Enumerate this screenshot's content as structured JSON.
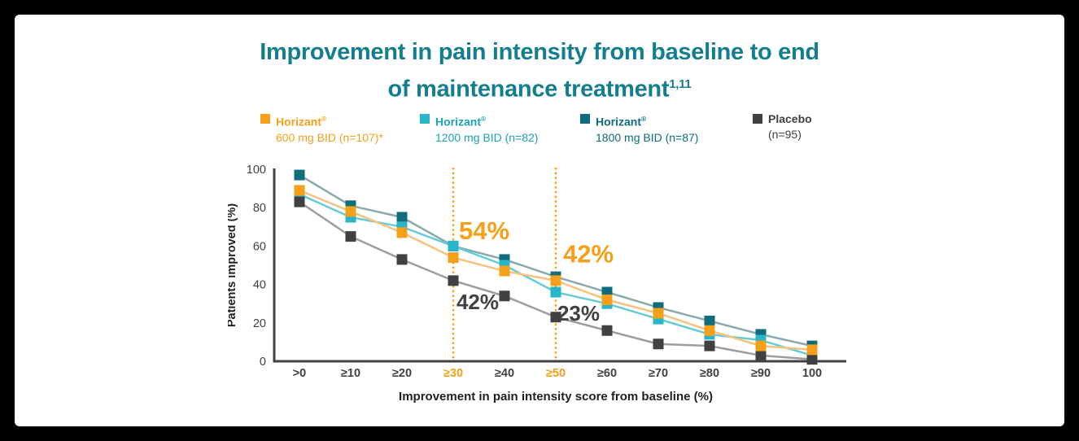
{
  "title": {
    "line1": "Improvement in pain intensity from baseline to end",
    "line2": "of maintenance treatment",
    "superscript": "1,11"
  },
  "legend": [
    {
      "label": "Horizant",
      "reg": "®",
      "sublabel": "600 mg BID (n=107)*",
      "color": "#F5A01B",
      "text_color": "#F5A01B"
    },
    {
      "label": "Horizant",
      "reg": "®",
      "sublabel": "1200 mg BID (n=82)",
      "color": "#29B6C9",
      "text_color": "#1BA2B7"
    },
    {
      "label": "Horizant",
      "reg": "®",
      "sublabel": "1800 mg BID (n=87)",
      "color": "#0E6C7C",
      "text_color": "#0E6C7C"
    },
    {
      "label": "Placebo",
      "reg": "",
      "sublabel": "(n=95)",
      "color": "#414042",
      "text_color": "#414042"
    }
  ],
  "chart_data": {
    "type": "line",
    "title": "Improvement in pain intensity from baseline to end of maintenance treatment",
    "categories": [
      ">0",
      "≥10",
      "≥20",
      "≥30",
      "≥40",
      "≥50",
      "≥60",
      "≥70",
      "≥80",
      "≥90",
      "100"
    ],
    "series": [
      {
        "name": "Horizant 600 mg BID (n=107)*",
        "marker_color": "#F5A01B",
        "line_color": "#F8C27E",
        "values": [
          89,
          78,
          67,
          54,
          47,
          42,
          32,
          25,
          16,
          8,
          6
        ]
      },
      {
        "name": "Horizant 1200 mg BID (n=82)",
        "marker_color": "#29B6C9",
        "line_color": "#63CBD9",
        "values": [
          87,
          75,
          70,
          60,
          50,
          36,
          30,
          22,
          14,
          11,
          3
        ]
      },
      {
        "name": "Horizant 1800 mg BID (n=87)",
        "marker_color": "#0E6C7C",
        "line_color": "#8AA9AC",
        "values": [
          97,
          81,
          75,
          60,
          53,
          44,
          36,
          28,
          21,
          14,
          8
        ]
      },
      {
        "name": "Placebo (n=95)",
        "marker_color": "#414042",
        "line_color": "#9D9D9D",
        "values": [
          83,
          65,
          53,
          42,
          34,
          23,
          16,
          9,
          8,
          3,
          1
        ]
      }
    ],
    "xlabel": "Improvement in pain intensity score from baseline (%)",
    "ylabel": "Patients improved (%)",
    "ylim": [
      0,
      100
    ],
    "yticks": [
      0,
      20,
      40,
      60,
      80,
      100
    ],
    "grid": false,
    "legend_position": "top",
    "highlight_categories": [
      "≥30",
      "≥50"
    ],
    "reference_lines": [
      {
        "category": "≥30",
        "color": "#F5A01B",
        "style": "dotted"
      },
      {
        "category": "≥50",
        "color": "#F5A01B",
        "style": "dotted"
      }
    ],
    "annotations": [
      {
        "text": "54%",
        "category_index": 3,
        "dx": 38,
        "value": 68,
        "color": "#F5A01B",
        "style": "brand"
      },
      {
        "text": "42%",
        "category_index": 5,
        "dx": 40,
        "value": 56,
        "color": "#F5A01B",
        "style": "brand"
      },
      {
        "text": "42%",
        "category_index": 3,
        "dx": 30,
        "value": 31,
        "color": "#414042",
        "style": "dark"
      },
      {
        "text": "23%",
        "category_index": 5,
        "dx": 28,
        "value": 25,
        "color": "#414042",
        "style": "dark"
      }
    ],
    "axis_color": "#414042"
  }
}
